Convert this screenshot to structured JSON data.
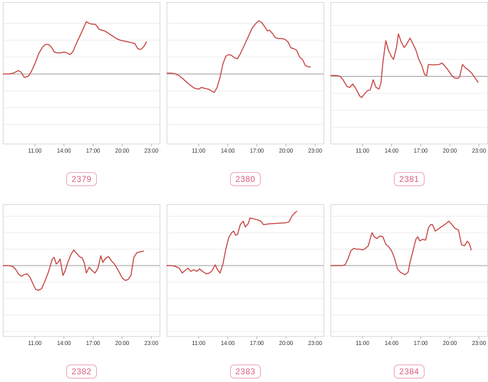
{
  "colors": {
    "line": "#c5413d",
    "grid": "#ececec",
    "zero_line": "#9a9a9a",
    "panel_border": "#d8d8d8",
    "tick": "#b0b0b0",
    "tick_label": "#333333",
    "badge_text": "#dc5f7c",
    "badge_border": "#efa2b3"
  },
  "chart_data": [
    {
      "type": "line",
      "badge": "2379",
      "title": "2379",
      "x_ticks": [
        "11:00",
        "14:00",
        "17:00",
        "20:00",
        "23:00"
      ],
      "x_tick_hours": [
        11,
        14,
        17,
        20,
        23
      ],
      "xlim": [
        7.7,
        23.93
      ],
      "ylim": [
        -0.417,
        0.426
      ],
      "zero_line": 0,
      "grid": true,
      "legend": "none",
      "series": [
        {
          "name": "2379",
          "x": [
            7.7,
            8.3,
            8.8,
            9.3,
            9.6,
            9.9,
            10.3,
            10.6,
            11.0,
            11.4,
            11.8,
            12.1,
            12.4,
            12.7,
            13.0,
            13.3,
            13.7,
            14.0,
            14.3,
            14.6,
            14.9,
            15.2,
            15.6,
            16.0,
            16.3,
            16.6,
            16.9,
            17.2,
            17.4,
            17.6,
            17.9,
            18.2,
            18.6,
            19.0,
            19.4,
            19.8,
            20.2,
            20.6,
            21.0,
            21.3,
            21.6,
            21.9,
            22.2,
            22.5
          ],
          "y": [
            0,
            0,
            0.005,
            0.02,
            0.01,
            -0.02,
            -0.015,
            0.01,
            0.06,
            0.12,
            0.16,
            0.175,
            0.175,
            0.16,
            0.13,
            0.125,
            0.125,
            0.13,
            0.125,
            0.115,
            0.13,
            0.17,
            0.22,
            0.27,
            0.31,
            0.3,
            0.295,
            0.295,
            0.285,
            0.265,
            0.26,
            0.255,
            0.24,
            0.225,
            0.21,
            0.2,
            0.195,
            0.19,
            0.185,
            0.18,
            0.15,
            0.145,
            0.16,
            0.19
          ]
        }
      ]
    },
    {
      "type": "line",
      "badge": "2380",
      "title": "2380",
      "x_ticks": [
        "11:00",
        "14:00",
        "17:00",
        "20:00",
        "23:00"
      ],
      "x_tick_hours": [
        11,
        14,
        17,
        20,
        23
      ],
      "xlim": [
        7.7,
        23.93
      ],
      "ylim": [
        -0.417,
        0.426
      ],
      "zero_line": 0,
      "grid": true,
      "legend": "none",
      "series": [
        {
          "name": "2380",
          "x": [
            7.7,
            8.2,
            8.6,
            9.0,
            9.4,
            9.8,
            10.2,
            10.6,
            11.0,
            11.3,
            11.6,
            12.0,
            12.3,
            12.6,
            12.9,
            13.2,
            13.5,
            13.8,
            14.1,
            14.4,
            14.7,
            15.0,
            15.3,
            15.7,
            16.1,
            16.5,
            16.9,
            17.2,
            17.5,
            17.8,
            18.1,
            18.3,
            18.6,
            18.9,
            19.2,
            19.6,
            19.9,
            20.2,
            20.5,
            20.8,
            21.1,
            21.4,
            21.7,
            22.0,
            22.3,
            22.5
          ],
          "y": [
            0.005,
            0.005,
            0,
            -0.01,
            -0.03,
            -0.05,
            -0.07,
            -0.085,
            -0.09,
            -0.08,
            -0.085,
            -0.09,
            -0.1,
            -0.11,
            -0.08,
            -0.02,
            0.06,
            0.105,
            0.115,
            0.11,
            0.095,
            0.09,
            0.12,
            0.17,
            0.22,
            0.27,
            0.3,
            0.315,
            0.305,
            0.28,
            0.255,
            0.26,
            0.24,
            0.215,
            0.21,
            0.21,
            0.205,
            0.19,
            0.155,
            0.15,
            0.14,
            0.1,
            0.085,
            0.05,
            0.042,
            0.042
          ]
        }
      ]
    },
    {
      "type": "line",
      "badge": "2381",
      "title": "2381",
      "x_ticks": [
        "11:00",
        "14:00",
        "17:00",
        "20:00",
        "23:00"
      ],
      "x_tick_hours": [
        11,
        14,
        17,
        20,
        23
      ],
      "xlim": [
        7.7,
        23.93
      ],
      "ylim": [
        -0.4,
        0.437
      ],
      "zero_line": 0,
      "grid": true,
      "legend": "none",
      "series": [
        {
          "name": "2381",
          "x": [
            7.7,
            8.3,
            8.7,
            9.0,
            9.4,
            9.7,
            10.0,
            10.3,
            10.7,
            10.9,
            11.2,
            11.5,
            11.8,
            12.1,
            12.4,
            12.7,
            12.9,
            13.1,
            13.4,
            13.7,
            14.0,
            14.2,
            14.5,
            14.7,
            15.0,
            15.3,
            15.5,
            15.9,
            16.2,
            16.5,
            16.8,
            17.1,
            17.4,
            17.6,
            17.8,
            18.1,
            18.5,
            18.9,
            19.2,
            19.5,
            19.8,
            20.2,
            20.5,
            20.8,
            21.0,
            21.3,
            21.6,
            21.9,
            22.3,
            22.6,
            22.9
          ],
          "y": [
            0.005,
            0.005,
            0,
            -0.02,
            -0.06,
            -0.065,
            -0.045,
            -0.07,
            -0.115,
            -0.125,
            -0.105,
            -0.085,
            -0.08,
            -0.02,
            -0.065,
            -0.075,
            -0.04,
            0.08,
            0.21,
            0.15,
            0.115,
            0.1,
            0.17,
            0.25,
            0.2,
            0.17,
            0.185,
            0.225,
            0.19,
            0.155,
            0.1,
            0.065,
            0.01,
            0.005,
            0.07,
            0.068,
            0.068,
            0.07,
            0.078,
            0.06,
            0.038,
            0.005,
            -0.01,
            -0.012,
            -0.005,
            0.07,
            0.05,
            0.038,
            0.015,
            -0.01,
            -0.035
          ]
        }
      ]
    },
    {
      "type": "line",
      "badge": "2382",
      "title": "2382",
      "x_ticks": [
        "11:00",
        "14:00",
        "17:00",
        "20:00",
        "23:00"
      ],
      "x_tick_hours": [
        11,
        14,
        17,
        20,
        23
      ],
      "xlim": [
        7.7,
        23.93
      ],
      "ylim": [
        -0.432,
        0.373
      ],
      "zero_line": 0,
      "grid": true,
      "legend": "none",
      "series": [
        {
          "name": "2382",
          "x": [
            7.7,
            8.3,
            8.7,
            9.0,
            9.3,
            9.6,
            9.9,
            10.2,
            10.5,
            10.8,
            11.1,
            11.4,
            11.7,
            12.0,
            12.4,
            12.8,
            13.0,
            13.2,
            13.4,
            13.6,
            13.9,
            14.1,
            14.4,
            14.7,
            15.0,
            15.3,
            15.6,
            15.9,
            16.1,
            16.3,
            16.6,
            16.9,
            17.2,
            17.5,
            17.8,
            18.0,
            18.3,
            18.6,
            18.9,
            19.2,
            19.6,
            20.0,
            20.3,
            20.6,
            20.9,
            21.2,
            21.5,
            21.9,
            22.2
          ],
          "y": [
            0,
            0,
            -0.005,
            -0.02,
            -0.05,
            -0.065,
            -0.055,
            -0.05,
            -0.07,
            -0.11,
            -0.145,
            -0.15,
            -0.14,
            -0.1,
            -0.04,
            0.04,
            0.05,
            0.01,
            0.02,
            0.04,
            -0.06,
            -0.035,
            0.02,
            0.065,
            0.095,
            0.075,
            0.055,
            0.045,
            0.015,
            -0.045,
            -0.01,
            -0.03,
            -0.045,
            -0.015,
            0.06,
            0.02,
            0.045,
            0.055,
            0.028,
            0.01,
            -0.03,
            -0.075,
            -0.09,
            -0.085,
            -0.06,
            0.05,
            0.078,
            0.085,
            0.088
          ]
        }
      ]
    },
    {
      "type": "line",
      "badge": "2383",
      "title": "2383",
      "x_ticks": [
        "11:00",
        "14:00",
        "17:00",
        "20:00",
        "23:00"
      ],
      "x_tick_hours": [
        11,
        14,
        17,
        20,
        23
      ],
      "xlim": [
        7.7,
        23.93
      ],
      "ylim": [
        -0.432,
        0.373
      ],
      "zero_line": 0,
      "grid": true,
      "legend": "none",
      "series": [
        {
          "name": "2383",
          "x": [
            7.7,
            8.2,
            8.6,
            9.0,
            9.3,
            9.6,
            9.9,
            10.2,
            10.5,
            10.8,
            11.1,
            11.4,
            11.8,
            12.1,
            12.4,
            12.7,
            12.9,
            13.2,
            13.5,
            13.8,
            14.1,
            14.4,
            14.6,
            14.8,
            15.0,
            15.3,
            15.6,
            15.8,
            16.1,
            16.3,
            16.6,
            17.0,
            17.4,
            17.7,
            18.0,
            18.4,
            18.9,
            19.4,
            19.9,
            20.3,
            20.6,
            20.9,
            21.1
          ],
          "y": [
            0,
            0,
            -0.005,
            -0.015,
            -0.045,
            -0.03,
            -0.015,
            -0.035,
            -0.025,
            -0.035,
            -0.02,
            -0.035,
            -0.05,
            -0.045,
            -0.03,
            0.005,
            -0.02,
            -0.045,
            0.01,
            0.1,
            0.17,
            0.2,
            0.21,
            0.185,
            0.19,
            0.25,
            0.27,
            0.235,
            0.255,
            0.29,
            0.285,
            0.28,
            0.27,
            0.248,
            0.252,
            0.255,
            0.256,
            0.258,
            0.26,
            0.265,
            0.3,
            0.32,
            0.33
          ]
        }
      ]
    },
    {
      "type": "line",
      "badge": "2384",
      "title": "2384",
      "x_ticks": [
        "11:00",
        "14:00",
        "17:00",
        "20:00",
        "23:00"
      ],
      "x_tick_hours": [
        11,
        14,
        17,
        20,
        23
      ],
      "xlim": [
        7.7,
        23.93
      ],
      "ylim": [
        -0.432,
        0.373
      ],
      "zero_line": 0,
      "grid": true,
      "legend": "none",
      "series": [
        {
          "name": "2384",
          "x": [
            7.7,
            8.4,
            8.9,
            9.2,
            9.5,
            9.8,
            10.1,
            10.4,
            10.7,
            11.0,
            11.3,
            11.6,
            11.9,
            12.0,
            12.2,
            12.5,
            12.8,
            13.1,
            13.4,
            13.7,
            14.0,
            14.3,
            14.6,
            14.9,
            15.2,
            15.4,
            15.7,
            15.9,
            16.2,
            16.5,
            16.7,
            16.9,
            17.2,
            17.5,
            17.8,
            18.0,
            18.2,
            18.5,
            18.8,
            19.1,
            19.5,
            19.9,
            20.2,
            20.5,
            20.9,
            21.2,
            21.5,
            21.8,
            22.0,
            22.2
          ],
          "y": [
            0,
            0,
            0,
            0.005,
            0.04,
            0.09,
            0.105,
            0.1,
            0.1,
            0.095,
            0.105,
            0.12,
            0.185,
            0.2,
            0.175,
            0.165,
            0.18,
            0.175,
            0.13,
            0.115,
            0.09,
            0.045,
            -0.02,
            -0.04,
            -0.05,
            -0.055,
            -0.04,
            0.02,
            0.09,
            0.16,
            0.175,
            0.15,
            0.16,
            0.155,
            0.23,
            0.248,
            0.25,
            0.21,
            0.222,
            0.235,
            0.25,
            0.27,
            0.25,
            0.228,
            0.216,
            0.127,
            0.12,
            0.148,
            0.135,
            0.096
          ]
        }
      ]
    }
  ]
}
